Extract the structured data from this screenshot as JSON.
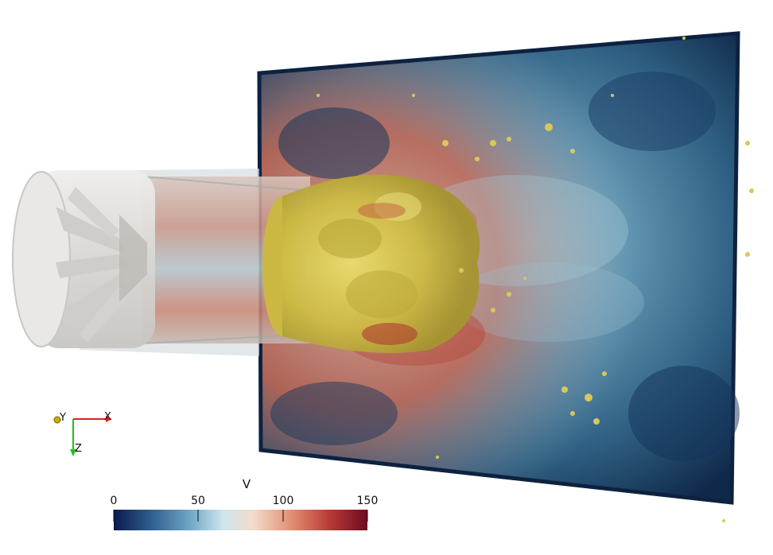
{
  "scene": {
    "description_colors": {
      "background": "#ffffff",
      "isosurface": "#d9c955",
      "nozzle_casing": "#e4e2df"
    }
  },
  "orientation_axes": {
    "labels": {
      "x": "X",
      "y": "Y",
      "z": "Z"
    },
    "colors": {
      "x": "#e02020",
      "y": "#c8b000",
      "z": "#20c020"
    }
  },
  "color_legend": {
    "title": "V",
    "ticks": [
      "0",
      "50",
      "100",
      "150"
    ],
    "range": [
      0,
      150
    ],
    "colormap": [
      "#0b1a4f",
      "#2c5a8c",
      "#6fa6c6",
      "#cde6ee",
      "#f3dccb",
      "#e38f73",
      "#b83a34",
      "#6e0b22"
    ]
  }
}
